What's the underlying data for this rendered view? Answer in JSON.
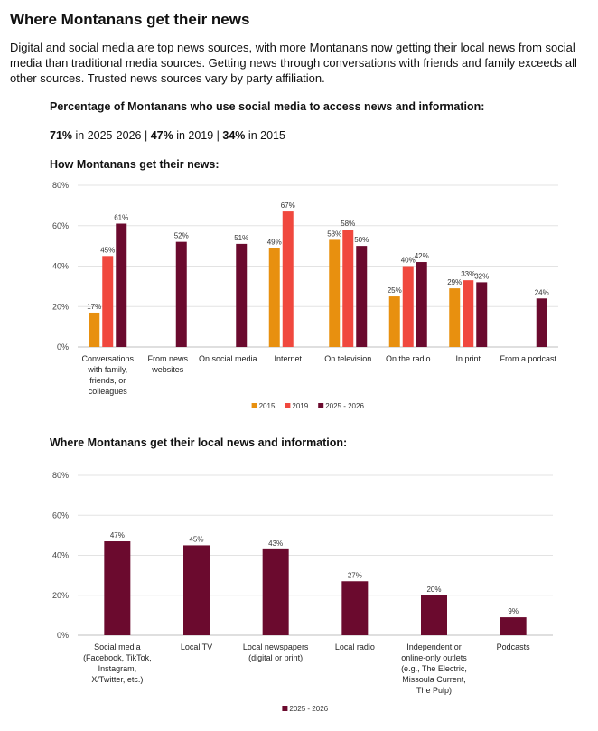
{
  "header": {
    "title": "Where Montanans get their news",
    "intro": "Digital and social media are top news sources, with more Montanans now getting their local news from social media than traditional media sources. Getting news through conversations with friends and family exceeds all other sources. Trusted news sources vary by party affiliation."
  },
  "social_stat": {
    "heading": "Percentage of Montanans who use social media to access news and information:",
    "items": [
      {
        "value": "71%",
        "label": " in 2025-2026"
      },
      {
        "value": "47%",
        "label": " in 2019"
      },
      {
        "value": "34%",
        "label": " in 2015"
      }
    ],
    "separator": " | "
  },
  "colors": {
    "2015": "#E8900F",
    "2019": "#F0483E",
    "2025": "#6B0A2E"
  },
  "chart_data": [
    {
      "type": "bar",
      "title": "How Montanans get their news:",
      "categories": [
        [
          "Conversations",
          "with family,",
          "friends, or",
          "colleagues"
        ],
        [
          "From news",
          "websites"
        ],
        [
          "On social media"
        ],
        [
          "Internet"
        ],
        [
          "On television"
        ],
        [
          "On the radio"
        ],
        [
          "In print"
        ],
        [
          "From a podcast"
        ]
      ],
      "series": [
        {
          "name": "2015",
          "color": "#E8900F",
          "values": [
            17,
            null,
            null,
            49,
            53,
            25,
            29,
            null
          ]
        },
        {
          "name": "2019",
          "color": "#F0483E",
          "values": [
            45,
            null,
            null,
            67,
            58,
            40,
            33,
            null
          ]
        },
        {
          "name": "2025 - 2026",
          "color": "#6B0A2E",
          "values": [
            61,
            52,
            51,
            null,
            50,
            42,
            32,
            24
          ]
        }
      ],
      "yticks": [
        "0%",
        "20%",
        "40%",
        "60%",
        "80%"
      ],
      "ylim": [
        0,
        80
      ],
      "legend": "bottom",
      "grid": true
    },
    {
      "type": "bar",
      "title": "Where Montanans get their local news and information:",
      "categories": [
        [
          "Social media",
          "(Facebook, TikTok,",
          "Instagram,",
          "X/Twitter, etc.)"
        ],
        [
          "Local TV"
        ],
        [
          "Local newspapers",
          "(digital or print)"
        ],
        [
          "Local radio"
        ],
        [
          "Independent or",
          "online-only outlets",
          "(e.g., The Electric,",
          "Missoula Current,",
          "The Pulp)"
        ],
        [
          "Podcasts"
        ]
      ],
      "series": [
        {
          "name": "2025 - 2026",
          "color": "#6B0A2E",
          "values": [
            47,
            45,
            43,
            27,
            20,
            9
          ]
        }
      ],
      "yticks": [
        "0%",
        "20%",
        "40%",
        "60%",
        "80%"
      ],
      "ylim": [
        0,
        80
      ],
      "legend": "bottom",
      "grid": true
    }
  ]
}
